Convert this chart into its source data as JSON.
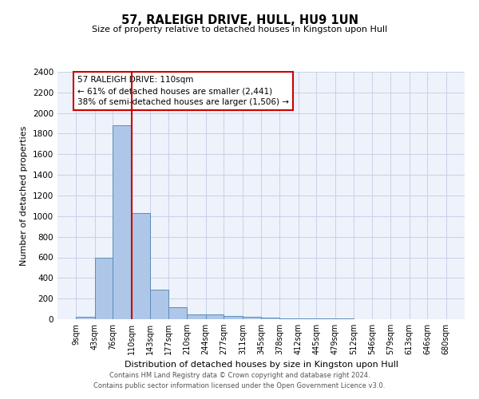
{
  "title": "57, RALEIGH DRIVE, HULL, HU9 1UN",
  "subtitle": "Size of property relative to detached houses in Kingston upon Hull",
  "xlabel": "Distribution of detached houses by size in Kingston upon Hull",
  "ylabel": "Number of detached properties",
  "footer_line1": "Contains HM Land Registry data © Crown copyright and database right 2024.",
  "footer_line2": "Contains public sector information licensed under the Open Government Licence v3.0.",
  "annotation_line1": "57 RALEIGH DRIVE: 110sqm",
  "annotation_line2": "← 61% of detached houses are smaller (2,441)",
  "annotation_line3": "38% of semi-detached houses are larger (1,506) →",
  "property_size": 110,
  "bar_edges": [
    9,
    43,
    76,
    110,
    143,
    177,
    210,
    244,
    277,
    311,
    345,
    378,
    412,
    445,
    479,
    512,
    546,
    579,
    613,
    646,
    680
  ],
  "bar_heights": [
    20,
    600,
    1880,
    1030,
    285,
    120,
    50,
    45,
    30,
    20,
    15,
    10,
    8,
    5,
    4,
    3,
    2,
    2,
    1,
    1
  ],
  "bar_color": "#aec6e8",
  "bar_edge_color": "#5b8db8",
  "red_line_color": "#cc0000",
  "annotation_box_color": "#cc0000",
  "background_color": "#eef2fa",
  "grid_color": "#c8d0e8",
  "ylim": [
    0,
    2400
  ],
  "yticks": [
    0,
    200,
    400,
    600,
    800,
    1000,
    1200,
    1400,
    1600,
    1800,
    2000,
    2200,
    2400
  ]
}
